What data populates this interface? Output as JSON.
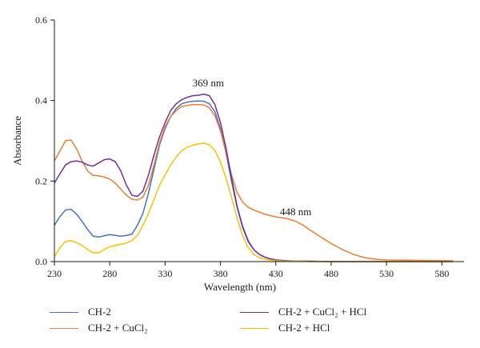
{
  "chart_data": {
    "type": "line",
    "xlabel": "Wavelength (nm)",
    "ylabel": "Absorbance",
    "xlim": [
      230,
      600
    ],
    "ylim": [
      0.0,
      0.6
    ],
    "x_ticks": [
      230,
      280,
      330,
      380,
      430,
      480,
      530,
      580
    ],
    "y_ticks": [
      0.0,
      0.2,
      0.4,
      0.6
    ],
    "y_tick_labels": [
      "0.0",
      "0.2",
      "0.4",
      "0.6"
    ],
    "grid": false,
    "legend_position": "bottom",
    "annotations": [
      {
        "text": "369 nm",
        "x": 369,
        "y": 0.435
      },
      {
        "text": "448 nm",
        "x": 448,
        "y": 0.115
      }
    ],
    "series": [
      {
        "name": "CH-2",
        "color": "#4472C4",
        "x": [
          230,
          235,
          240,
          245,
          250,
          255,
          260,
          265,
          270,
          275,
          280,
          285,
          290,
          295,
          300,
          305,
          310,
          315,
          320,
          325,
          330,
          335,
          340,
          345,
          350,
          355,
          360,
          365,
          370,
          375,
          380,
          385,
          390,
          395,
          400,
          405,
          410,
          415,
          420,
          425,
          430,
          440,
          450,
          460,
          480,
          500,
          530,
          560,
          590
        ],
        "y": [
          0.09,
          0.112,
          0.128,
          0.13,
          0.118,
          0.1,
          0.08,
          0.063,
          0.061,
          0.064,
          0.067,
          0.065,
          0.063,
          0.065,
          0.068,
          0.09,
          0.12,
          0.17,
          0.23,
          0.29,
          0.33,
          0.36,
          0.38,
          0.392,
          0.396,
          0.398,
          0.399,
          0.398,
          0.392,
          0.372,
          0.33,
          0.27,
          0.2,
          0.135,
          0.085,
          0.05,
          0.03,
          0.018,
          0.011,
          0.007,
          0.004,
          0.002,
          0.001,
          0.001,
          0.0,
          0.0,
          0.0,
          0.0,
          0.0
        ]
      },
      {
        "name": "CH-2 + CuCl₂",
        "color": "#ED7D31",
        "x": [
          230,
          235,
          240,
          245,
          250,
          255,
          260,
          265,
          270,
          275,
          280,
          285,
          290,
          295,
          300,
          305,
          310,
          315,
          320,
          325,
          330,
          335,
          340,
          345,
          350,
          355,
          360,
          365,
          370,
          375,
          380,
          385,
          390,
          395,
          400,
          405,
          410,
          420,
          430,
          440,
          448,
          455,
          460,
          470,
          480,
          490,
          500,
          510,
          520,
          530,
          560,
          590
        ],
        "y": [
          0.25,
          0.275,
          0.3,
          0.302,
          0.28,
          0.25,
          0.225,
          0.214,
          0.213,
          0.21,
          0.205,
          0.195,
          0.18,
          0.165,
          0.155,
          0.153,
          0.16,
          0.19,
          0.24,
          0.295,
          0.335,
          0.36,
          0.375,
          0.385,
          0.388,
          0.39,
          0.39,
          0.389,
          0.382,
          0.362,
          0.325,
          0.272,
          0.215,
          0.172,
          0.148,
          0.135,
          0.128,
          0.118,
          0.111,
          0.107,
          0.1,
          0.09,
          0.08,
          0.062,
          0.045,
          0.03,
          0.018,
          0.01,
          0.006,
          0.004,
          0.003,
          0.002
        ]
      },
      {
        "name": "CH-2 + CuCl₂ + HCl",
        "color": "#7030A0",
        "x": [
          230,
          235,
          240,
          245,
          250,
          255,
          260,
          265,
          270,
          275,
          280,
          285,
          290,
          295,
          300,
          305,
          310,
          315,
          320,
          325,
          330,
          335,
          340,
          345,
          350,
          355,
          360,
          365,
          370,
          375,
          380,
          385,
          390,
          395,
          400,
          405,
          410,
          415,
          420,
          425,
          430,
          440,
          450,
          460,
          480,
          500,
          530,
          560,
          590
        ],
        "y": [
          0.195,
          0.218,
          0.24,
          0.248,
          0.25,
          0.247,
          0.24,
          0.237,
          0.245,
          0.253,
          0.255,
          0.248,
          0.225,
          0.19,
          0.165,
          0.162,
          0.175,
          0.215,
          0.265,
          0.31,
          0.345,
          0.375,
          0.392,
          0.402,
          0.408,
          0.412,
          0.413,
          0.416,
          0.412,
          0.39,
          0.345,
          0.282,
          0.208,
          0.138,
          0.088,
          0.052,
          0.03,
          0.018,
          0.011,
          0.007,
          0.004,
          0.002,
          0.001,
          0.001,
          0.0,
          0.0,
          0.0,
          0.0,
          0.0
        ]
      },
      {
        "name": "CH-2 + HCl",
        "color": "#FFC000",
        "x": [
          230,
          235,
          240,
          245,
          250,
          255,
          260,
          265,
          270,
          275,
          280,
          285,
          290,
          295,
          300,
          305,
          310,
          315,
          320,
          325,
          330,
          335,
          340,
          345,
          350,
          355,
          360,
          365,
          370,
          375,
          380,
          385,
          390,
          395,
          400,
          405,
          410,
          415,
          420,
          425,
          430,
          440,
          450,
          460,
          480,
          500,
          530,
          560,
          590
        ],
        "y": [
          0.012,
          0.035,
          0.05,
          0.052,
          0.047,
          0.04,
          0.03,
          0.022,
          0.022,
          0.03,
          0.037,
          0.04,
          0.043,
          0.046,
          0.052,
          0.065,
          0.09,
          0.12,
          0.155,
          0.19,
          0.215,
          0.24,
          0.26,
          0.275,
          0.284,
          0.289,
          0.292,
          0.294,
          0.29,
          0.276,
          0.248,
          0.208,
          0.16,
          0.108,
          0.065,
          0.035,
          0.018,
          0.01,
          0.006,
          0.004,
          0.002,
          0.001,
          0.001,
          0.0,
          0.0,
          0.0,
          0.0,
          0.0,
          0.0
        ]
      }
    ]
  },
  "legend": {
    "items": [
      {
        "label": "CH-2",
        "color": "#4472C4"
      },
      {
        "label": "CH-2 + CuCl₂",
        "color": "#ED7D31"
      },
      {
        "label": "CH-2 + CuCl₂ + HCl",
        "color": "#7030A0"
      },
      {
        "label": "CH-2 + HCl",
        "color": "#FFC000"
      }
    ]
  }
}
